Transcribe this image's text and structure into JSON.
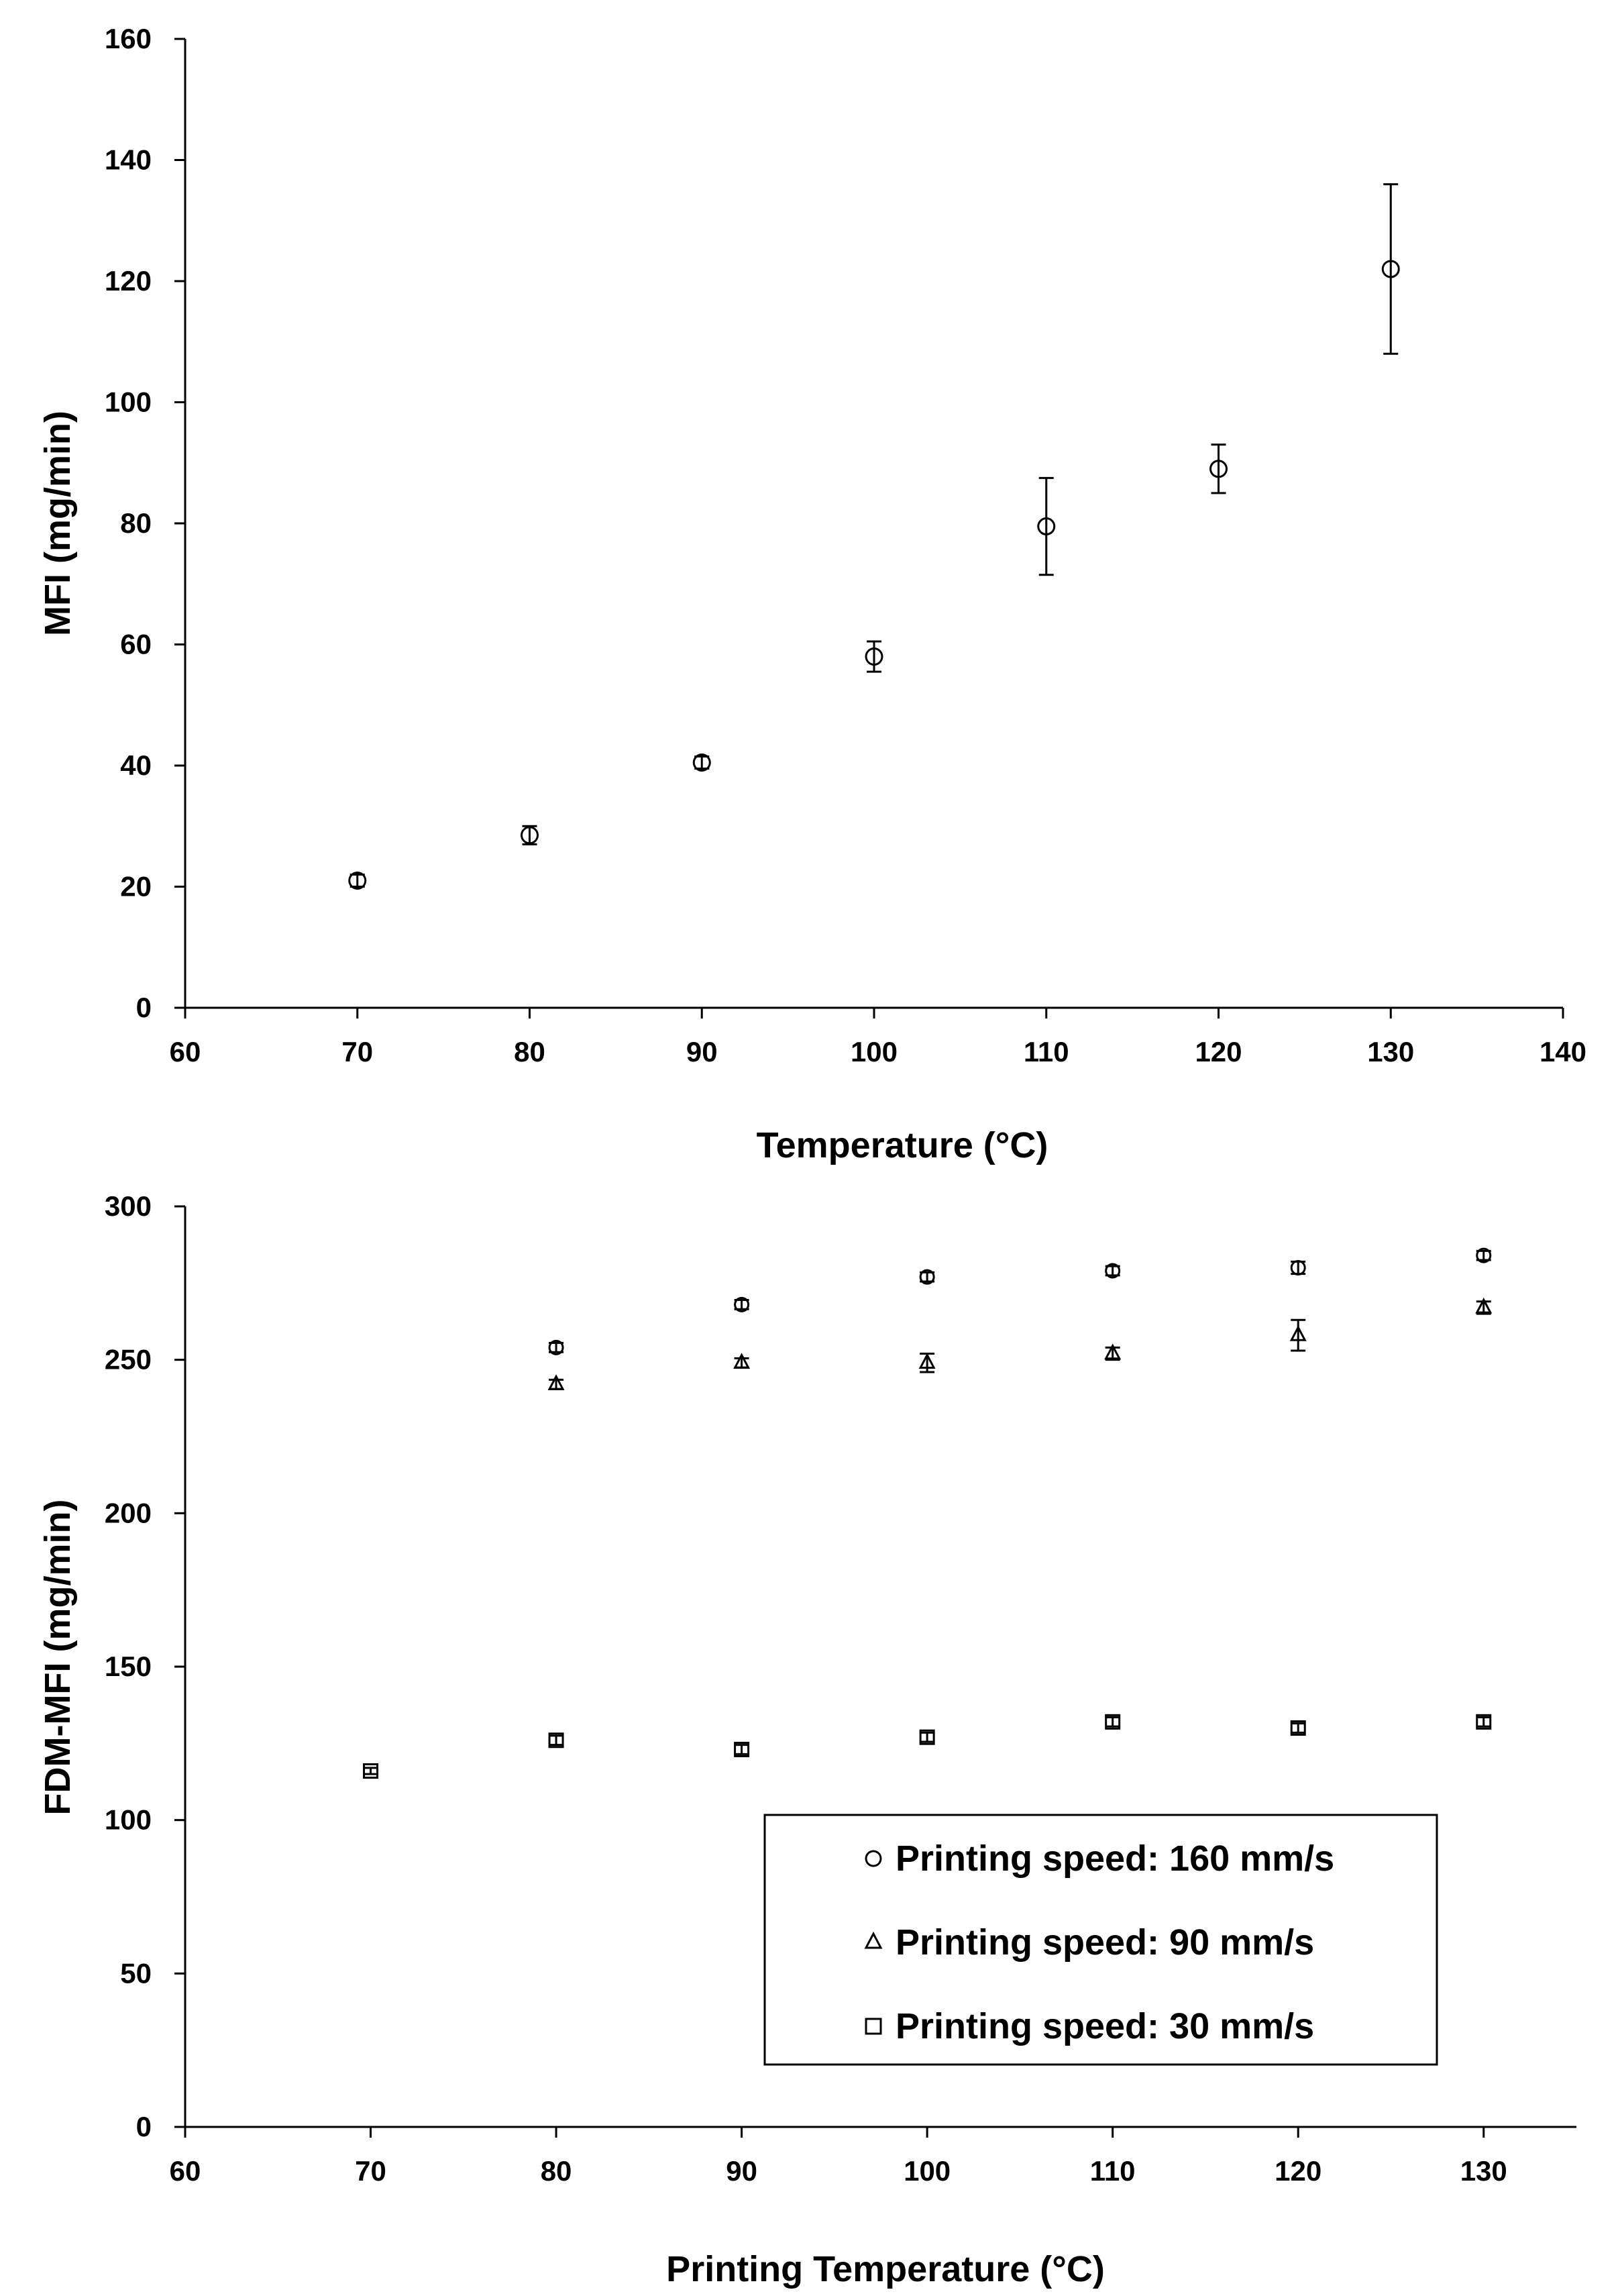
{
  "chart_data": [
    {
      "type": "scatter",
      "title": "",
      "xlabel": "Temperature (°C)",
      "ylabel": "MFI (mg/min)",
      "xlim": [
        60,
        140
      ],
      "ylim": [
        0,
        160
      ],
      "xticks": [
        60,
        70,
        80,
        90,
        100,
        110,
        120,
        130,
        140
      ],
      "yticks": [
        0,
        20,
        40,
        60,
        80,
        100,
        120,
        140,
        160
      ],
      "grid": false,
      "series": [
        {
          "name": "MFI",
          "marker": "circle",
          "x": [
            70,
            80,
            90,
            100,
            110,
            120,
            130
          ],
          "values": [
            21,
            28.5,
            40.5,
            58,
            79.5,
            89,
            122
          ],
          "error": [
            1,
            1.5,
            1,
            2.5,
            8,
            4,
            14
          ]
        }
      ]
    },
    {
      "type": "scatter",
      "title": "",
      "xlabel": "Printing Temperature (°C)",
      "ylabel": "FDM-MFI (mg/min)",
      "xlim": [
        60,
        135
      ],
      "ylim": [
        0,
        300
      ],
      "xticks": [
        60,
        70,
        80,
        90,
        100,
        110,
        120,
        130
      ],
      "yticks": [
        0,
        50,
        100,
        150,
        200,
        250,
        300
      ],
      "grid": false,
      "legend_position": "bottom-right",
      "series": [
        {
          "name": "Printing speed: 160 mm/s",
          "marker": "circle",
          "x": [
            80,
            90,
            100,
            110,
            120,
            130
          ],
          "values": [
            254,
            268,
            277,
            279,
            280,
            284
          ],
          "error": [
            1.5,
            1.5,
            1.5,
            1.5,
            2,
            1.5
          ]
        },
        {
          "name": "Printing speed: 90 mm/s",
          "marker": "triangle",
          "x": [
            80,
            90,
            100,
            110,
            120,
            130
          ],
          "values": [
            242,
            249,
            249,
            252,
            258,
            267
          ],
          "error": [
            1.5,
            1.5,
            3,
            2,
            5,
            2
          ]
        },
        {
          "name": "Printing speed: 30 mm/s",
          "marker": "square",
          "x": [
            70,
            80,
            90,
            100,
            110,
            120,
            130
          ],
          "values": [
            116,
            126,
            123,
            127,
            132,
            130,
            132
          ],
          "error": [
            1,
            1.5,
            1.5,
            1.5,
            1.5,
            1.5,
            1.5
          ]
        }
      ]
    }
  ]
}
